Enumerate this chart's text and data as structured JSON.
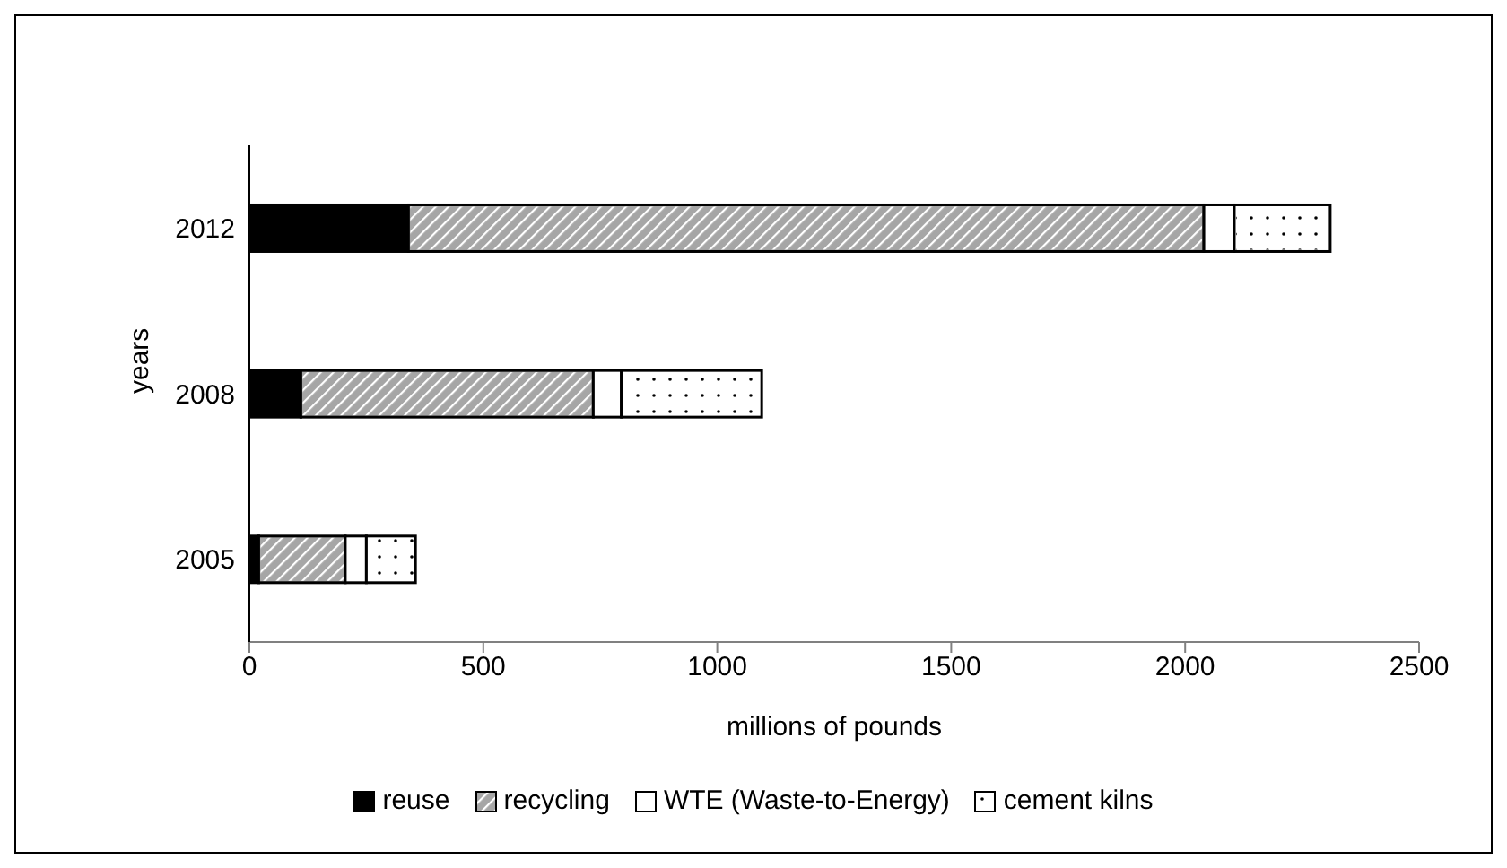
{
  "chart_data": {
    "type": "bar",
    "orientation": "horizontal",
    "stacked": true,
    "categories": [
      "2012",
      "2008",
      "2005"
    ],
    "series": [
      {
        "name": "reuse",
        "color": "#000000",
        "values": [
          340,
          110,
          20
        ]
      },
      {
        "name": "recycling",
        "color": "#a6a6a6",
        "values": [
          1700,
          625,
          185
        ]
      },
      {
        "name": "WTE (Waste-to-Energy)",
        "color": "#ffffff",
        "values": [
          65,
          60,
          45
        ]
      },
      {
        "name": "cement kilns",
        "color": "#ffffff",
        "values": [
          205,
          300,
          105
        ]
      }
    ],
    "xlim": [
      0,
      2500
    ],
    "xticks": [
      0,
      500,
      1000,
      1500,
      2000,
      2500
    ],
    "xlabel": "millions of pounds",
    "ylabel": "years",
    "grid": false,
    "legend": "bottom"
  }
}
